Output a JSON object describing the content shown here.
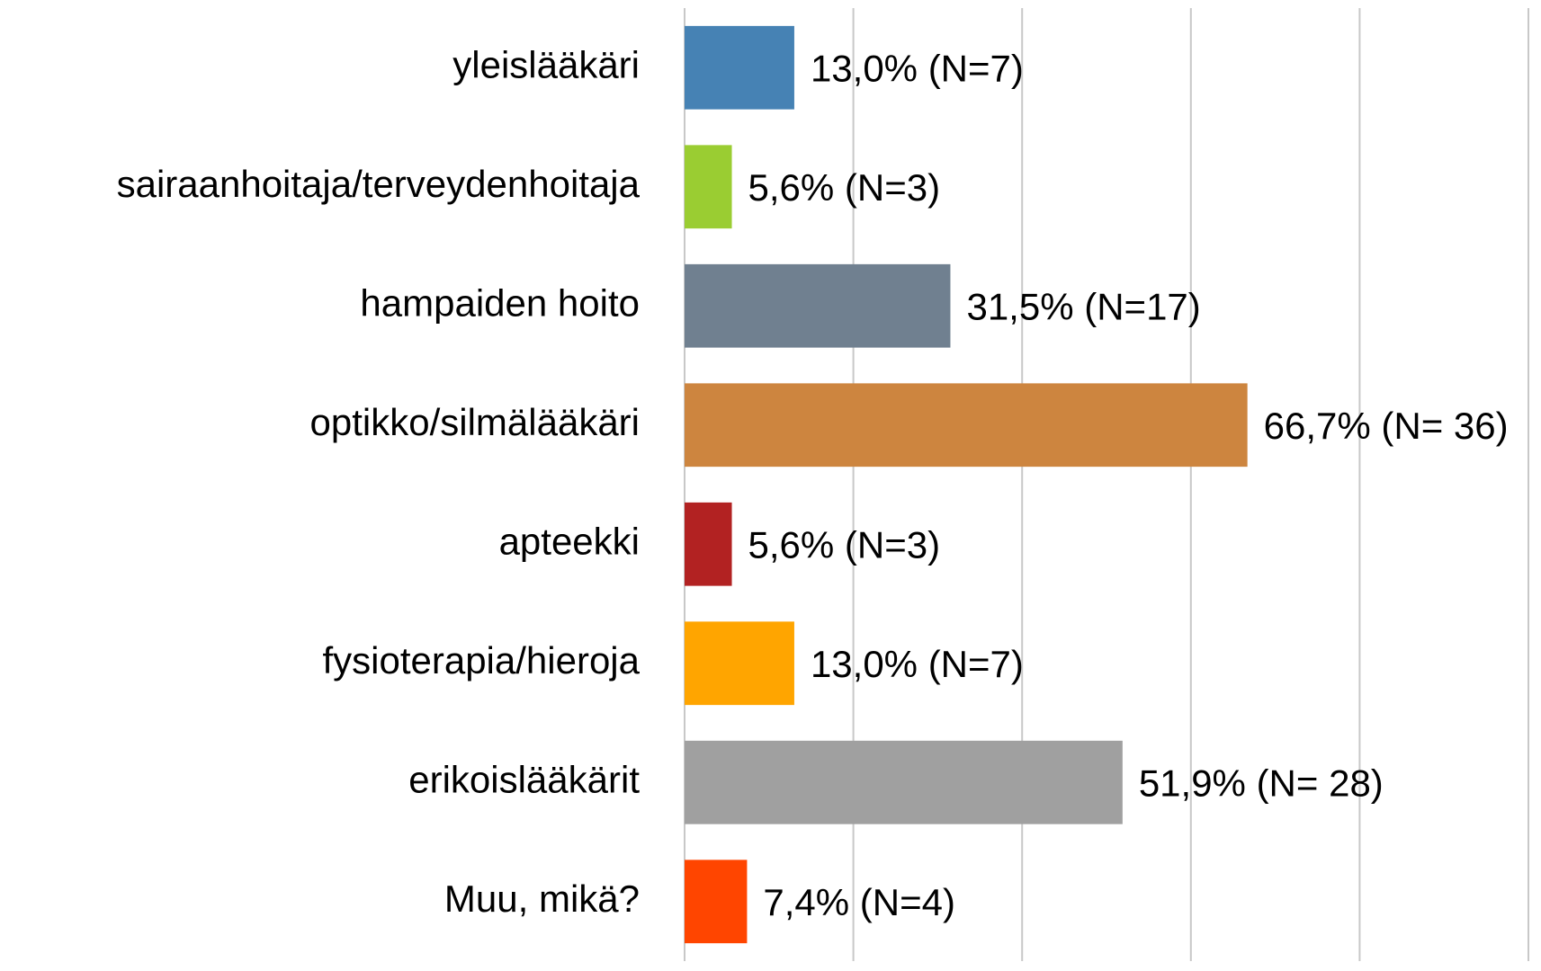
{
  "chart_data": {
    "type": "barh",
    "categories": [
      "yleislääkäri",
      "sairaanhoitaja/terveydenhoitaja",
      "hampaiden hoito",
      "optikko/silmälääkäri",
      "apteekki",
      "fysioterapia/hieroja",
      "erikoislääkärit",
      "Muu, mikä?"
    ],
    "values": [
      13.0,
      5.6,
      31.5,
      66.7,
      5.6,
      13.0,
      51.9,
      7.4
    ],
    "value_labels": [
      "13,0% (N=7)",
      "5,6% (N=3)",
      "31,5% (N=17)",
      "66,7% (N= 36)",
      "5,6% (N=3)",
      "13,0% (N=7)",
      "51,9% (N= 28)",
      "7,4% (N=4)"
    ],
    "colors": [
      "#4682b4",
      "#9acd32",
      "#708090",
      "#cd853f",
      "#b22222",
      "#ffa500",
      "#a0a0a0",
      "#ff4500"
    ],
    "xlim": [
      0,
      100
    ],
    "xticks": [
      0,
      20,
      40,
      60,
      80,
      100
    ],
    "grid": true
  }
}
